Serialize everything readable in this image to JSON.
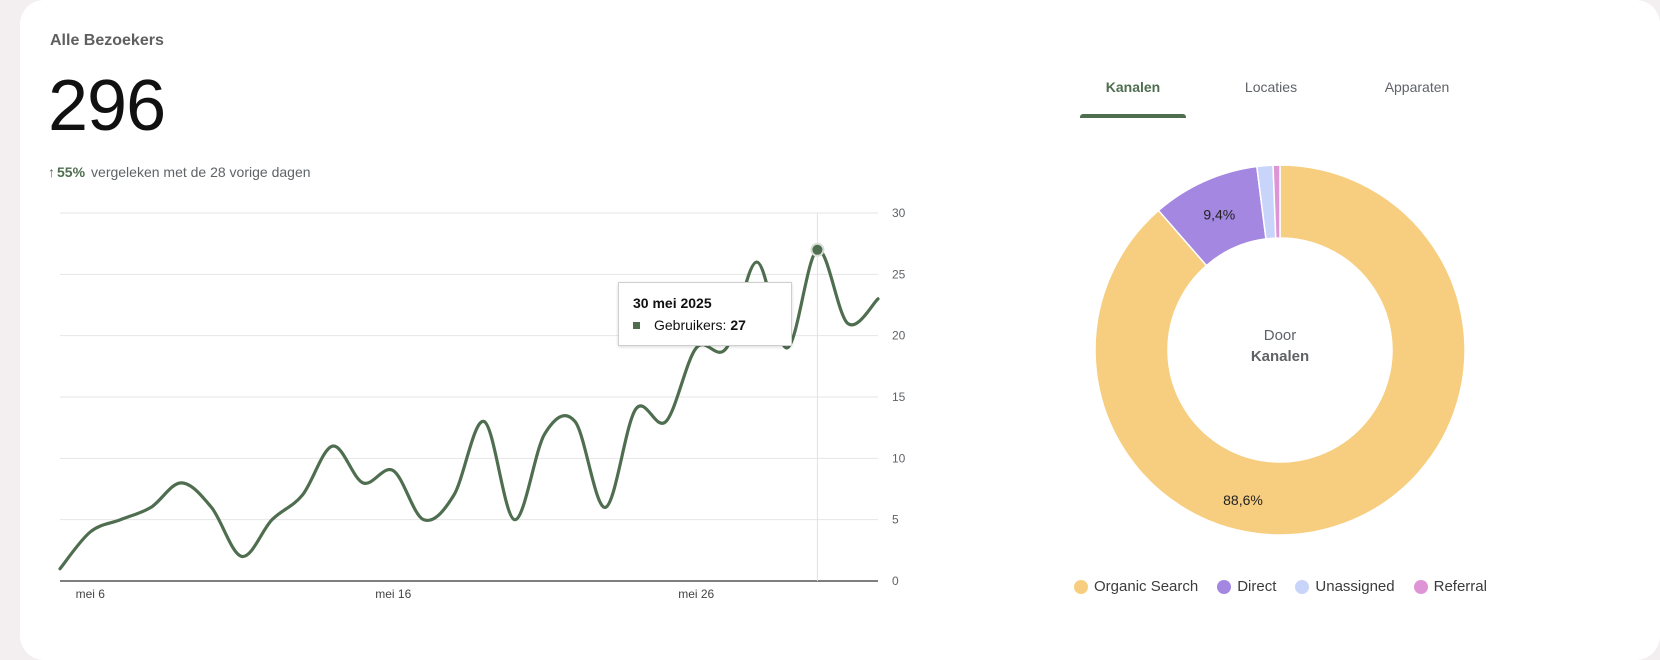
{
  "card": {
    "title": "Alle Bezoekers",
    "total": "296",
    "change_arrow": "↑",
    "change_pct": "55%",
    "change_text": "vergeleken met de 28 vorige dagen"
  },
  "tooltip": {
    "date": "30 mei 2025",
    "series_label": "Gebruikers:",
    "value": "27"
  },
  "tabs": [
    {
      "label": "Kanalen",
      "active": true
    },
    {
      "label": "Locaties",
      "active": false
    },
    {
      "label": "Apparaten",
      "active": false
    }
  ],
  "donut_center": {
    "line1": "Door",
    "line2": "Kanalen"
  },
  "colors": {
    "line": "#4f6e50",
    "organic": "#f7ce7f",
    "direct": "#a387e0",
    "unassigned": "#c9d4fa",
    "referral": "#de95d6"
  },
  "chart_data": [
    {
      "type": "line",
      "series": [
        {
          "name": "Gebruikers",
          "values": [
            1,
            4,
            5,
            6,
            8,
            6,
            2,
            5,
            7,
            11,
            8,
            9,
            5,
            7,
            13,
            5,
            12,
            13,
            6,
            14,
            13,
            19,
            19,
            26,
            19,
            27,
            21,
            23
          ]
        }
      ],
      "x_labels": [
        {
          "index": 1,
          "label": "mei 6"
        },
        {
          "index": 11,
          "label": "mei 16"
        },
        {
          "index": 21,
          "label": "mei 26"
        }
      ],
      "y_ticks": [
        0,
        5,
        10,
        15,
        20,
        25,
        30
      ],
      "ylim": [
        0,
        30
      ],
      "highlight_index": 25,
      "grid": true
    },
    {
      "type": "pie",
      "labels": [
        "Organic Search",
        "Direct",
        "Unassigned",
        "Referral"
      ],
      "values": [
        88.6,
        9.4,
        1.4,
        0.6
      ],
      "data_labels": [
        "88,6%",
        "9,4%",
        "",
        ""
      ],
      "legend_position": "bottom"
    }
  ]
}
